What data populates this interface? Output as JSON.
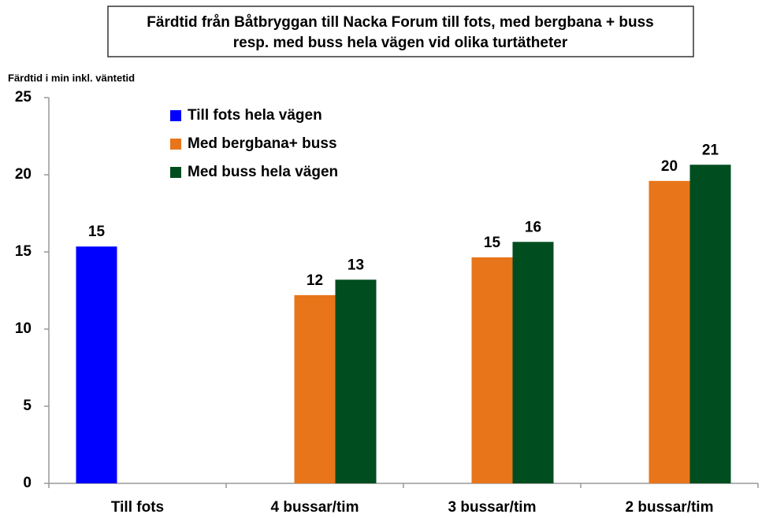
{
  "chart_data": {
    "type": "bar",
    "title": [
      "Färdtid från Båtbryggan till Nacka  Forum till fots, med bergbana + buss",
      "resp. med buss hela vägen vid olika turtätheter"
    ],
    "y_label": "Färdtid i min inkl. väntetid",
    "categories": [
      "Till fots",
      "4 bussar/tim",
      "3 bussar/tim",
      "2 bussar/tim"
    ],
    "series": [
      {
        "name": "Till fots hela vägen",
        "color": "#0000ff",
        "values": [
          15.35,
          null,
          null,
          null
        ],
        "value_labels": [
          "15",
          null,
          null,
          null
        ]
      },
      {
        "name": "Med bergbana+ buss",
        "color": "#e8751a",
        "values": [
          null,
          12.2,
          14.65,
          19.6
        ],
        "value_labels": [
          null,
          "12",
          "15",
          "20"
        ]
      },
      {
        "name": "Med buss hela vägen",
        "color": "#004d1f",
        "values": [
          null,
          13.2,
          15.65,
          20.65
        ],
        "value_labels": [
          null,
          "13",
          "16",
          "21"
        ]
      }
    ],
    "ylim": [
      0,
      25
    ],
    "yticks": [
      0,
      5,
      10,
      15,
      20,
      25
    ],
    "grid": false,
    "legend": "top-left"
  }
}
